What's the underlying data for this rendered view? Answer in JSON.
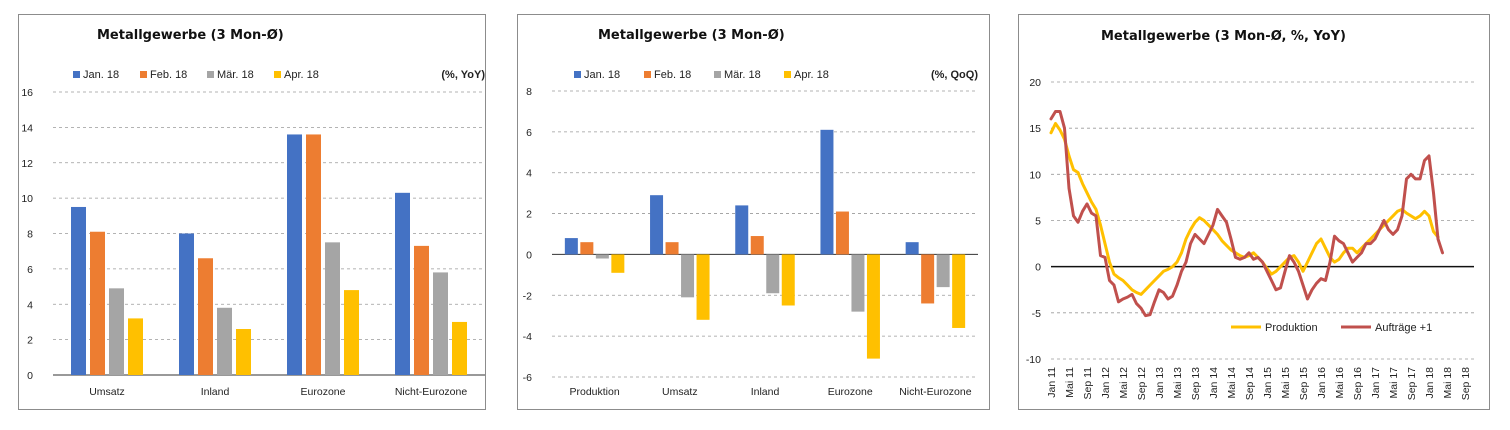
{
  "chart_data": [
    {
      "type": "bar",
      "title": "Metallgewerbe (3 Mon-Ø)",
      "unit_label": "(%, YoY)",
      "categories": [
        "Umsatz",
        "Inland",
        "Eurozone",
        "Nicht-Eurozone"
      ],
      "series": [
        {
          "name": "Jan. 18",
          "color": "#4472c4",
          "values": [
            9.5,
            8.0,
            13.6,
            10.3
          ]
        },
        {
          "name": "Feb. 18",
          "color": "#ed7d31",
          "values": [
            8.1,
            6.6,
            13.6,
            7.3
          ]
        },
        {
          "name": "Mär. 18",
          "color": "#a5a5a5",
          "values": [
            4.9,
            3.8,
            7.5,
            5.8
          ]
        },
        {
          "name": "Apr. 18",
          "color": "#ffc000",
          "values": [
            3.2,
            2.6,
            4.8,
            3.0
          ]
        }
      ],
      "ylim": [
        0,
        16
      ],
      "yticks": [
        0,
        2,
        4,
        6,
        8,
        10,
        12,
        14,
        16
      ],
      "grid": true,
      "legend": "top"
    },
    {
      "type": "bar",
      "title": "Metallgewerbe (3 Mon-Ø)",
      "unit_label": "(%, QoQ)",
      "categories": [
        "Produktion",
        "Umsatz",
        "Inland",
        "Eurozone",
        "Nicht-Eurozone"
      ],
      "series": [
        {
          "name": "Jan. 18",
          "color": "#4472c4",
          "values": [
            0.8,
            2.9,
            2.4,
            6.1,
            0.6
          ]
        },
        {
          "name": "Feb. 18",
          "color": "#ed7d31",
          "values": [
            0.6,
            0.6,
            0.9,
            2.1,
            -2.4
          ]
        },
        {
          "name": "Mär. 18",
          "color": "#a5a5a5",
          "values": [
            -0.2,
            -2.1,
            -1.9,
            -2.8,
            -1.6
          ]
        },
        {
          "name": "Apr. 18",
          "color": "#ffc000",
          "values": [
            -0.9,
            -3.2,
            -2.5,
            -5.1,
            -3.6
          ]
        }
      ],
      "ylim": [
        -6,
        8
      ],
      "yticks": [
        -6,
        -4,
        -2,
        0,
        2,
        4,
        6,
        8
      ],
      "grid": true,
      "legend": "top"
    },
    {
      "type": "line",
      "title": "Metallgewerbe (3 Mon-Ø, %, YoY)",
      "ylim": [
        -10,
        20
      ],
      "yticks": [
        -10,
        -5,
        0,
        5,
        10,
        15,
        20
      ],
      "x_ticks": [
        "Jan 11",
        "Mai 11",
        "Sep 11",
        "Jan 12",
        "Mai 12",
        "Sep 12",
        "Jan 13",
        "Mai 13",
        "Sep 13",
        "Jan 14",
        "Mai 14",
        "Sep 14",
        "Jan 15",
        "Mai 15",
        "Sep 15",
        "Jan 16",
        "Mai 16",
        "Sep 16",
        "Jan 17",
        "Mai 17",
        "Sep 17",
        "Jan 18",
        "Mai 18",
        "Sep 18"
      ],
      "x_range_months": [
        0,
        94
      ],
      "series": [
        {
          "name": "Produktion",
          "color": "#ffc000",
          "values": [
            14.5,
            15.5,
            14.8,
            13.8,
            12.0,
            10.5,
            10.2,
            9.0,
            8.0,
            7.0,
            6.2,
            4.5,
            2.5,
            0.5,
            -0.8,
            -1.2,
            -1.5,
            -2.0,
            -2.5,
            -2.8,
            -3.0,
            -2.5,
            -2.0,
            -1.5,
            -1.0,
            -0.5,
            -0.3,
            0.0,
            0.5,
            1.5,
            3.0,
            4.0,
            4.8,
            5.3,
            5.0,
            4.5,
            4.0,
            3.5,
            2.8,
            2.3,
            1.8,
            1.5,
            1.2,
            1.0,
            1.2,
            1.5,
            1.0,
            0.5,
            -0.2,
            -0.8,
            -0.5,
            0.0,
            0.5,
            1.0,
            1.2,
            0.5,
            -0.5,
            0.5,
            1.5,
            2.5,
            3.0,
            2.0,
            1.0,
            0.5,
            0.8,
            1.5,
            2.0,
            2.0,
            1.5,
            2.0,
            2.5,
            3.0,
            3.5,
            4.0,
            4.5,
            5.0,
            5.5,
            6.0,
            6.2,
            5.8,
            5.5,
            5.2,
            5.5,
            6.0,
            5.5,
            3.8,
            3.2
          ]
        },
        {
          "name": "Aufträge +1",
          "color": "#c0504d",
          "values": [
            16.0,
            16.8,
            16.8,
            15.0,
            8.5,
            5.5,
            4.8,
            6.0,
            6.8,
            5.8,
            5.5,
            1.2,
            1.0,
            -1.5,
            -2.0,
            -3.8,
            -3.5,
            -3.3,
            -3.0,
            -4.0,
            -4.5,
            -5.3,
            -5.2,
            -3.8,
            -2.5,
            -2.8,
            -3.5,
            -3.2,
            -2.0,
            -0.5,
            0.5,
            2.5,
            3.5,
            3.0,
            2.5,
            3.5,
            4.5,
            6.2,
            5.5,
            4.8,
            3.0,
            1.0,
            0.8,
            1.0,
            1.5,
            0.8,
            1.0,
            0.5,
            -0.5,
            -1.5,
            -2.5,
            -2.3,
            -0.5,
            1.2,
            0.5,
            -0.5,
            -2.0,
            -3.5,
            -2.5,
            -1.8,
            -1.3,
            -1.5,
            0.5,
            3.3,
            2.8,
            2.5,
            1.5,
            0.5,
            1.0,
            1.5,
            2.5,
            2.5,
            3.0,
            4.0,
            5.0,
            4.0,
            3.5,
            4.0,
            5.5,
            9.5,
            10.0,
            9.5,
            9.5,
            11.5,
            12.0,
            8.0,
            3.0,
            1.5
          ]
        }
      ],
      "zero_line": true,
      "grid": true,
      "legend": "bottom-right"
    }
  ]
}
